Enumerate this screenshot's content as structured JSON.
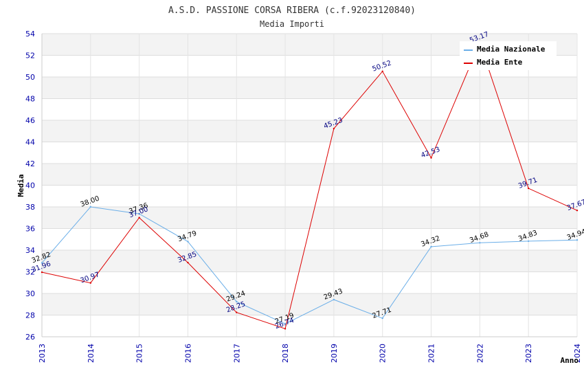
{
  "chart_data": {
    "type": "line",
    "title": "A.S.D. PASSIONE CORSA RIBERA (c.f.92023120840)",
    "subtitle": "Media Importi",
    "xlabel": "Anno",
    "ylabel": "Media",
    "ylim": [
      26,
      54
    ],
    "ytick_step": 2,
    "grid": true,
    "legend_position": "top-right",
    "x": [
      "2013",
      "2014",
      "2015",
      "2016",
      "2017",
      "2018",
      "2019",
      "2020",
      "2021",
      "2022",
      "2023",
      "2024"
    ],
    "series": [
      {
        "name": "Media Nazionale",
        "color": "#6aaee8",
        "label_color": "#000000",
        "values": [
          32.82,
          38.0,
          37.36,
          34.79,
          29.24,
          27.19,
          29.43,
          27.71,
          34.32,
          34.68,
          34.83,
          34.94
        ],
        "labels": [
          "32.82",
          "38.00",
          "37.36",
          "34.79",
          "29.24",
          "27.19",
          "29.43",
          "27.71",
          "34.32",
          "34.68",
          "34.83",
          "34.94"
        ]
      },
      {
        "name": "Media Ente",
        "color": "#dd0000",
        "label_color": "#000080",
        "values": [
          31.96,
          30.97,
          37.0,
          32.85,
          28.25,
          26.74,
          45.23,
          50.52,
          42.53,
          53.17,
          39.71,
          37.67
        ],
        "labels": [
          "31.96",
          "30.97",
          "37.00",
          "32.85",
          "28.25",
          "26.74",
          "45.23",
          "50.52",
          "42.53",
          "53.17",
          "39.71",
          "37.67"
        ]
      }
    ]
  }
}
